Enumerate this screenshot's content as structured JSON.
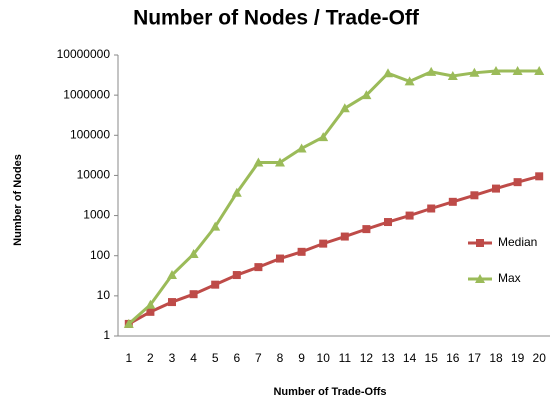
{
  "chart_data": {
    "type": "line",
    "title": "Number of Nodes / Trade-Off",
    "xlabel": "Number of Trade-Offs",
    "ylabel": "Number of Nodes",
    "categories": [
      1,
      2,
      3,
      4,
      5,
      6,
      7,
      8,
      9,
      10,
      11,
      12,
      13,
      14,
      15,
      16,
      17,
      18,
      19,
      20
    ],
    "series": [
      {
        "name": "Median",
        "color": "#be4b48",
        "marker": "square",
        "values": [
          2,
          4,
          7,
          11,
          19,
          33,
          52,
          85,
          125,
          200,
          300,
          460,
          690,
          1000,
          1500,
          2200,
          3200,
          4700,
          6800,
          9500
        ]
      },
      {
        "name": "Max",
        "color": "#9bbb59",
        "marker": "triangle",
        "values": [
          2,
          6,
          33,
          110,
          530,
          3700,
          21000,
          21000,
          47000,
          90000,
          470000,
          1000000,
          3500000,
          2200000,
          3800000,
          3000000,
          3600000,
          4000000,
          4000000,
          4000000
        ]
      }
    ],
    "ylim": [
      1,
      10000000
    ],
    "yticks": [
      1,
      10,
      100,
      1000,
      10000,
      100000,
      1000000,
      10000000
    ],
    "log_y": true,
    "grid": false,
    "legend": "right"
  }
}
